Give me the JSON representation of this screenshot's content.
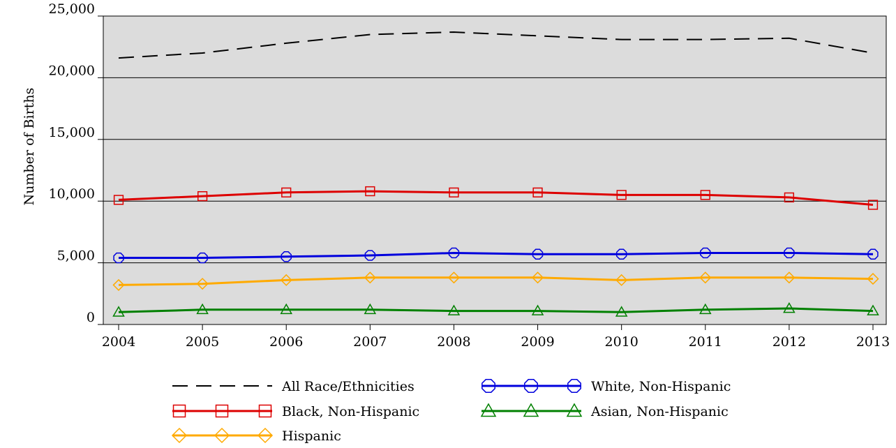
{
  "chart_data": {
    "type": "line",
    "ylabel": "Number of Births",
    "xlabel": "",
    "x": [
      "2004",
      "2005",
      "2006",
      "2007",
      "2008",
      "2009",
      "2010",
      "2011",
      "2012",
      "2013"
    ],
    "yticks": [
      0,
      5000,
      10000,
      15000,
      20000,
      25000
    ],
    "ytick_labels": [
      "0",
      "5,000",
      "10,000",
      "15,000",
      "20,000",
      "25,000"
    ],
    "ylim": [
      0,
      25000
    ],
    "grid": "horizontal",
    "background": "#dcdcdc",
    "legend_position": "bottom",
    "series": [
      {
        "name": "All Race/Ethnicities",
        "color": "#000000",
        "marker": "none",
        "dash": "dashed",
        "values": [
          21600,
          22000,
          22800,
          23500,
          23700,
          23400,
          23100,
          23100,
          23200,
          22000
        ]
      },
      {
        "name": "White, Non-Hispanic",
        "color": "#0000dd",
        "marker": "circle",
        "dash": "solid",
        "values": [
          5400,
          5400,
          5500,
          5600,
          5800,
          5700,
          5700,
          5800,
          5800,
          5700
        ]
      },
      {
        "name": "Black, Non-Hispanic",
        "color": "#dd0000",
        "marker": "square",
        "dash": "solid",
        "values": [
          10100,
          10400,
          10700,
          10800,
          10700,
          10700,
          10500,
          10500,
          10300,
          9700
        ]
      },
      {
        "name": "Asian, Non-Hispanic",
        "color": "#008000",
        "marker": "triangle",
        "dash": "solid",
        "values": [
          1000,
          1200,
          1200,
          1200,
          1100,
          1100,
          1000,
          1200,
          1300,
          1100
        ]
      },
      {
        "name": "Hispanic",
        "color": "#ffaa00",
        "marker": "diamond",
        "dash": "solid",
        "values": [
          3200,
          3300,
          3600,
          3800,
          3800,
          3800,
          3600,
          3800,
          3800,
          3700
        ]
      }
    ]
  }
}
